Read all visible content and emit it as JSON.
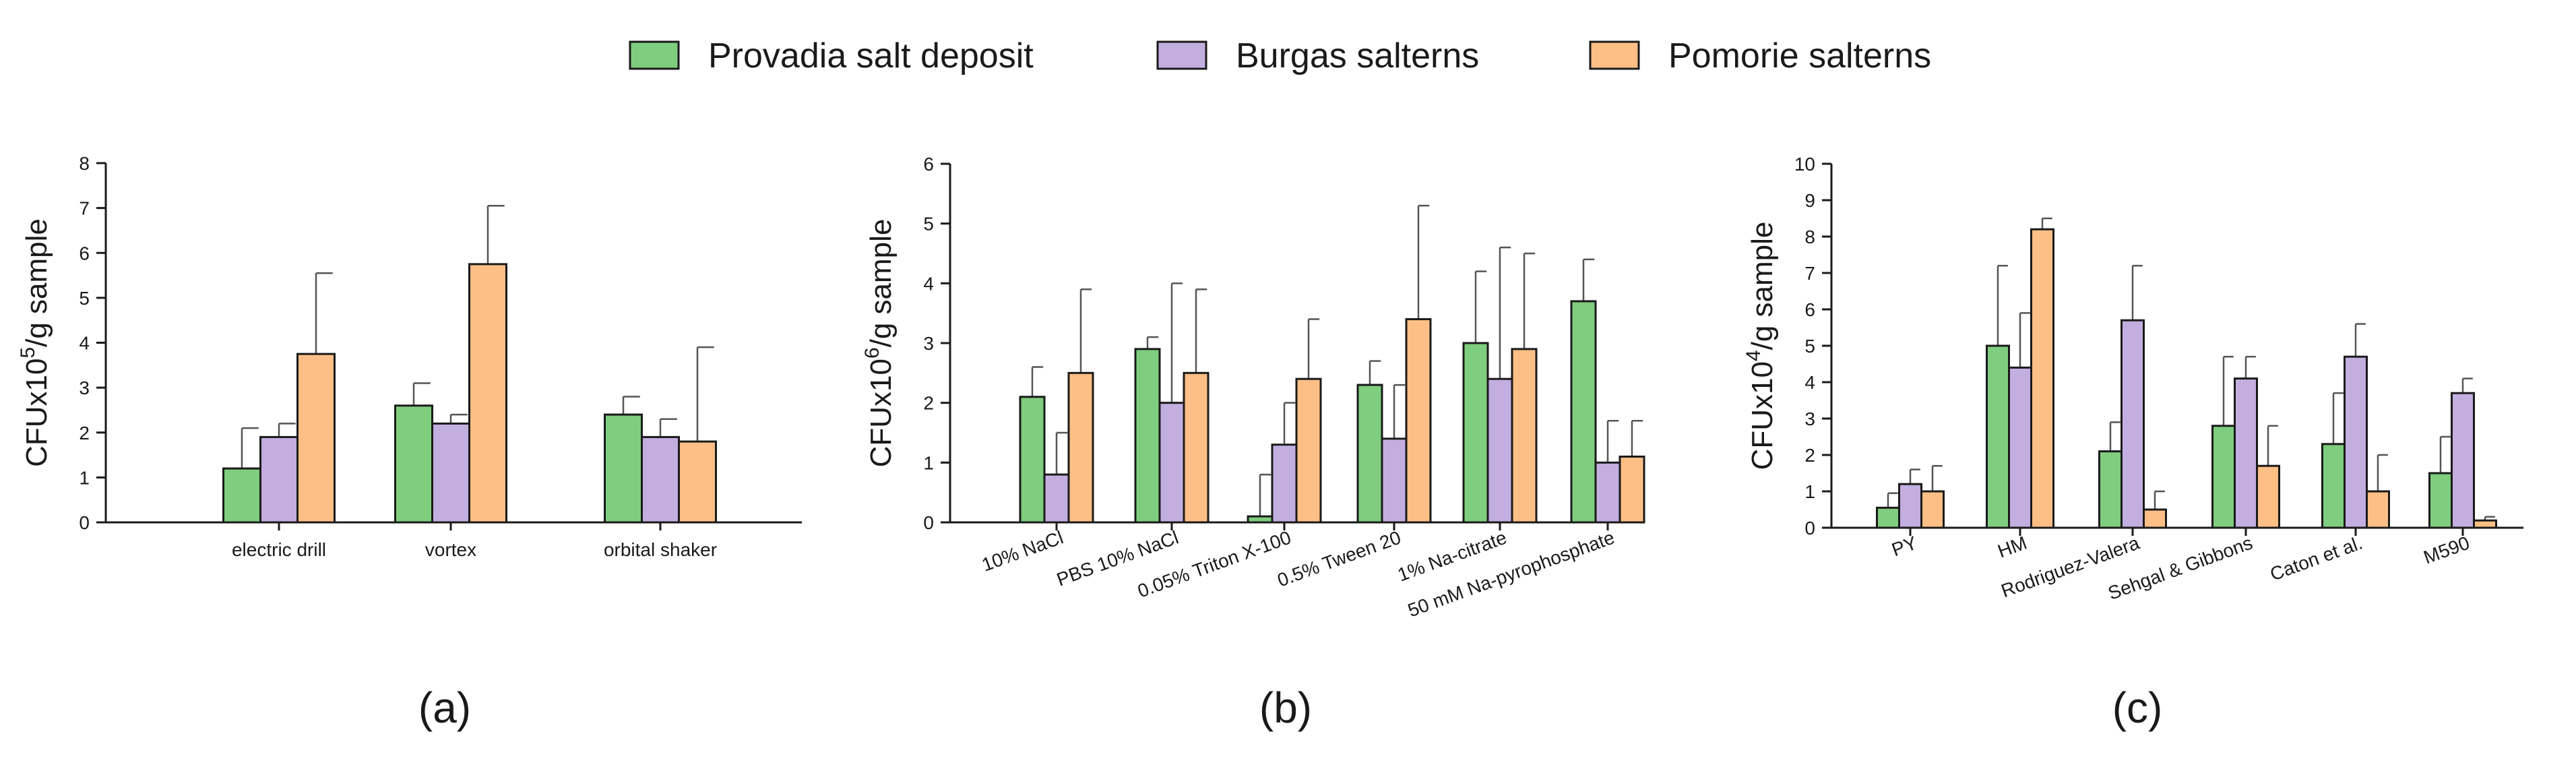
{
  "legend": {
    "items": [
      {
        "label": "Provadia salt deposit",
        "color": "#7fcd7f"
      },
      {
        "label": "Burgas salterns",
        "color": "#c3aee0"
      },
      {
        "label": "Pomorie salterns",
        "color": "#fdbf85"
      }
    ]
  },
  "colors": {
    "stroke": "#1a1a1a",
    "error": "#555555"
  },
  "chart_data": [
    {
      "type": "bar",
      "panel_label": "(a)",
      "ylabel_prefix": "CFUx10",
      "ylabel_exp": "5",
      "ylabel_suffix": "/g sample",
      "ylim": [
        0,
        8
      ],
      "yticks": [
        "0",
        "1",
        "2",
        "3",
        "4",
        "5",
        "6",
        "7",
        "8"
      ],
      "categories": [
        "electric drill",
        "vortex",
        "orbital shaker"
      ],
      "series": [
        {
          "name": "Provadia salt deposit",
          "values": [
            1.2,
            2.6,
            2.4
          ],
          "errors": [
            0.9,
            0.5,
            0.4
          ]
        },
        {
          "name": "Burgas salterns",
          "values": [
            1.9,
            2.2,
            1.9
          ],
          "errors": [
            0.3,
            0.2,
            0.4
          ]
        },
        {
          "name": "Pomorie salterns",
          "values": [
            3.75,
            5.75,
            1.8
          ],
          "errors": [
            1.8,
            1.3,
            2.1
          ]
        }
      ]
    },
    {
      "type": "bar",
      "panel_label": "(b)",
      "ylabel_prefix": "CFUx10",
      "ylabel_exp": "6",
      "ylabel_suffix": "/g sample",
      "ylim": [
        0,
        6
      ],
      "yticks": [
        "0",
        "1",
        "2",
        "3",
        "4",
        "5",
        "6"
      ],
      "categories": [
        "10% NaCl",
        "PBS 10% NaCl",
        "0.05% Triton X-100",
        "0.5% Tween 20",
        "1% Na-citrate",
        "50 mM Na-pyrophosphate"
      ],
      "series": [
        {
          "name": "Provadia salt deposit",
          "values": [
            2.1,
            2.9,
            0.1,
            2.3,
            3.0,
            3.7
          ],
          "errors": [
            0.5,
            0.2,
            0.7,
            0.4,
            1.2,
            0.7
          ]
        },
        {
          "name": "Burgas salterns",
          "values": [
            0.8,
            2.0,
            1.3,
            1.4,
            2.4,
            1.0
          ],
          "errors": [
            0.7,
            2.0,
            0.7,
            0.9,
            2.2,
            0.7
          ]
        },
        {
          "name": "Pomorie salterns",
          "values": [
            2.5,
            2.5,
            2.4,
            3.4,
            2.9,
            1.1
          ],
          "errors": [
            1.4,
            1.4,
            1.0,
            1.9,
            1.6,
            0.6
          ]
        }
      ]
    },
    {
      "type": "bar",
      "panel_label": "(c)",
      "ylabel_prefix": "CFUx10",
      "ylabel_exp": "4",
      "ylabel_suffix": "/g sample",
      "ylim": [
        0,
        10
      ],
      "yticks": [
        "0",
        "1",
        "2",
        "3",
        "4",
        "5",
        "6",
        "7",
        "8",
        "9",
        "10"
      ],
      "categories": [
        "PY",
        "HM",
        "Rodriguez-Valera",
        "Sehgal & Gibbons",
        "Caton et al.",
        "M590"
      ],
      "series": [
        {
          "name": "Provadia salt deposit",
          "values": [
            0.55,
            5.0,
            2.1,
            2.8,
            2.3,
            1.5
          ],
          "errors": [
            0.4,
            2.2,
            0.8,
            1.9,
            1.4,
            1.0
          ]
        },
        {
          "name": "Burgas salterns",
          "values": [
            1.2,
            4.4,
            5.7,
            4.1,
            4.7,
            3.7
          ],
          "errors": [
            0.4,
            1.5,
            1.5,
            0.6,
            0.9,
            0.4
          ]
        },
        {
          "name": "Pomorie salterns",
          "values": [
            1.0,
            8.2,
            0.5,
            1.7,
            1.0,
            0.2
          ],
          "errors": [
            0.7,
            0.3,
            0.5,
            1.1,
            1.0,
            0.1
          ]
        }
      ]
    }
  ]
}
